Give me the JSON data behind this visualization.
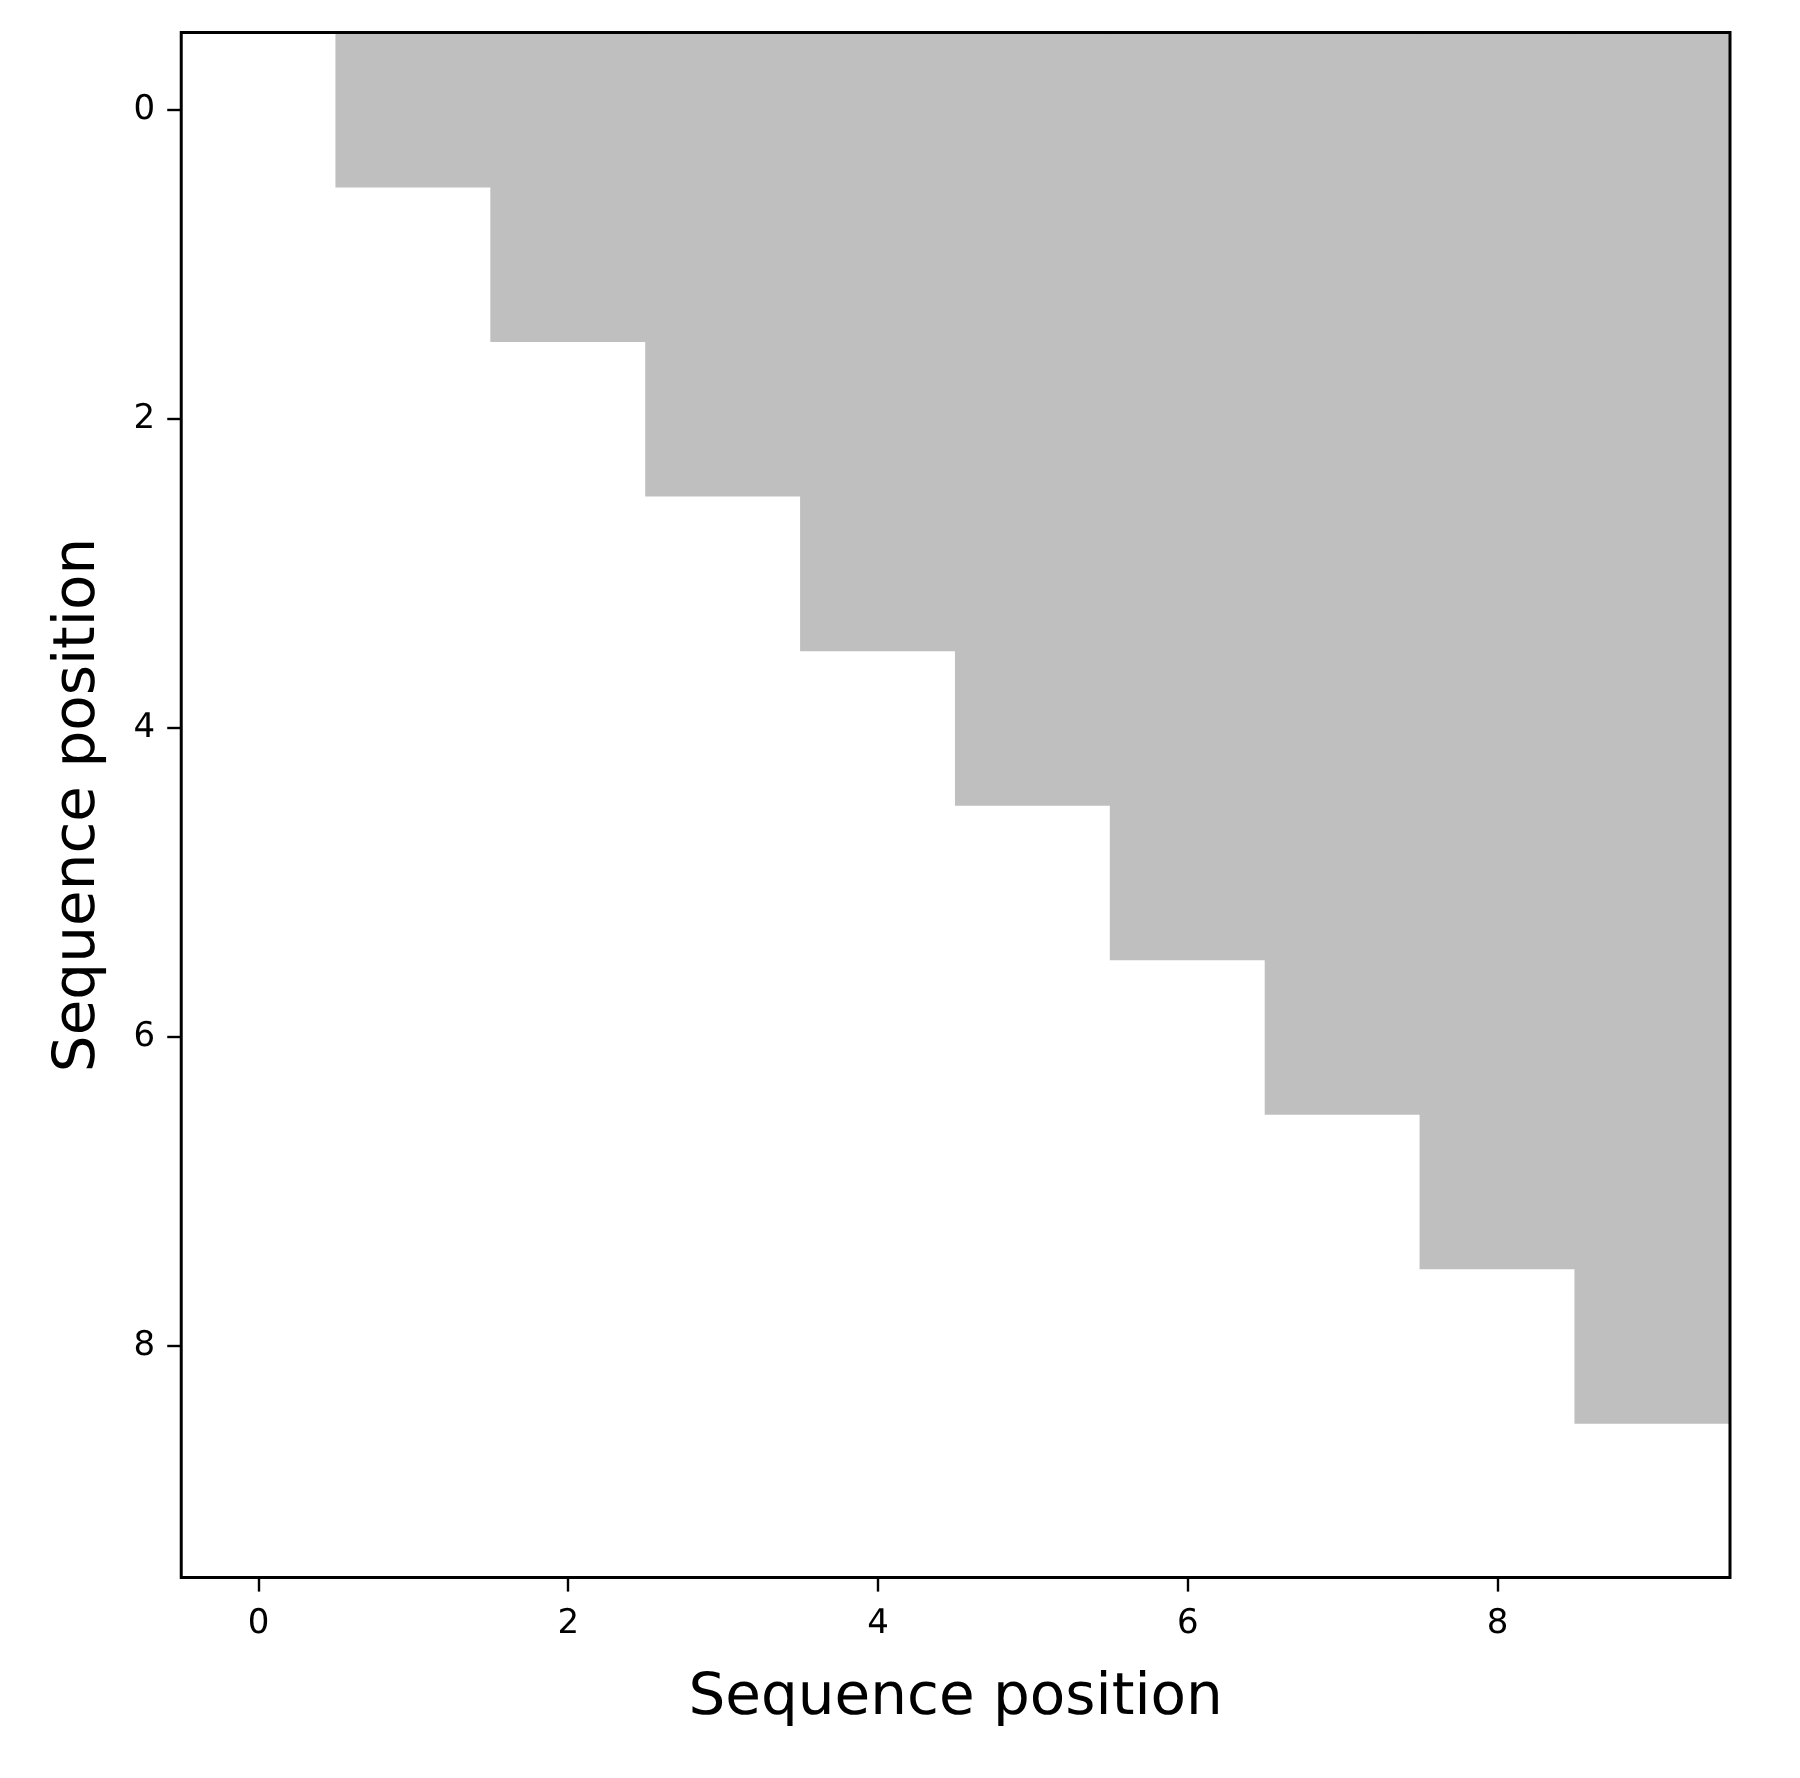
{
  "chart_data": {
    "type": "bar",
    "xlabel": "Sequence position",
    "ylabel": "Sequence position",
    "categories": [
      "0",
      null,
      "2",
      null,
      "4",
      null,
      "6",
      null,
      "8",
      null
    ],
    "color": "#bfbfbf",
    "base": [
      -0.5,
      -0.5,
      -0.5,
      -0.5,
      -0.5,
      -0.5,
      -0.5,
      -0.5,
      -0.5,
      -0.5
    ],
    "values": [
      0,
      1,
      2,
      3,
      4,
      5,
      6,
      7,
      8,
      9
    ],
    "ylim": [
      9.5,
      -0.5
    ],
    "yticks": [
      0,
      2,
      4,
      6,
      8
    ],
    "grid": false
  }
}
